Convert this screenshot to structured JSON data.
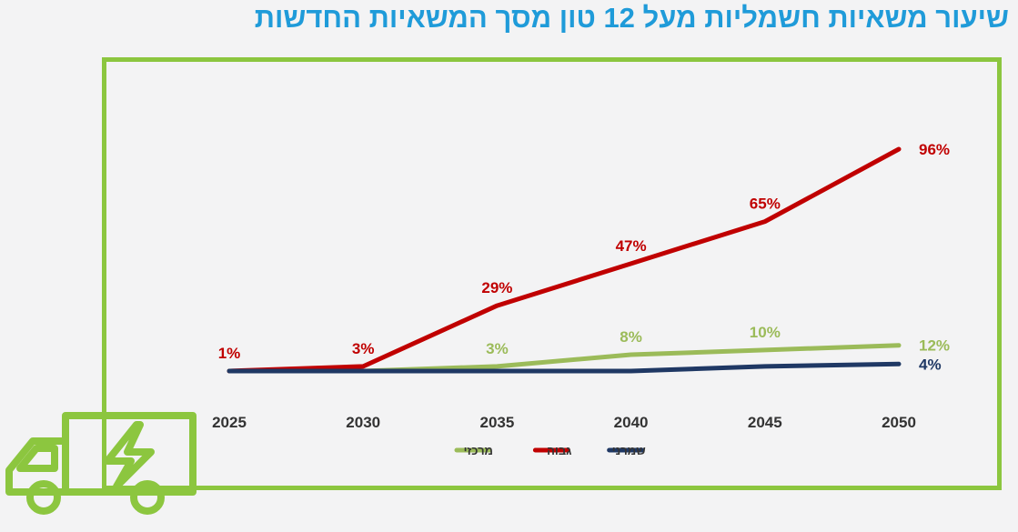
{
  "title": "שיעור משאיות חשמליות מעל 12 טון מסך המשאיות החדשות",
  "colors": {
    "title": "#1f9bd9",
    "frame": "#8cc63f",
    "background": "#f3f3f4"
  },
  "chart_data": {
    "type": "line",
    "title": "",
    "xlabel": "",
    "ylabel": "",
    "x": [
      "2025",
      "2030",
      "2035",
      "2040",
      "2045",
      "2050"
    ],
    "ylim": [
      0,
      100
    ],
    "grid": false,
    "legend_position": "bottom",
    "series": [
      {
        "name": "גבוה",
        "values": [
          1,
          3,
          29,
          47,
          65,
          96
        ],
        "labels": [
          "1%",
          "3%",
          "29%",
          "47%",
          "65%",
          "96%"
        ],
        "color": "#c00000"
      },
      {
        "name": "מרכזי",
        "values": [
          1,
          1,
          3,
          8,
          10,
          12
        ],
        "labels": [
          "",
          "",
          "3%",
          "8%",
          "10%",
          "12%"
        ],
        "color": "#9bbb59"
      },
      {
        "name": "שמרני",
        "values": [
          1,
          1,
          1,
          1,
          3,
          4
        ],
        "labels": [
          "",
          "",
          "",
          "",
          "",
          "4%"
        ],
        "color": "#1f3864"
      }
    ],
    "legend_order": [
      "מרכזי",
      "גבוה",
      "שמרני"
    ]
  },
  "icons": {
    "truck": "electric-truck-icon"
  }
}
